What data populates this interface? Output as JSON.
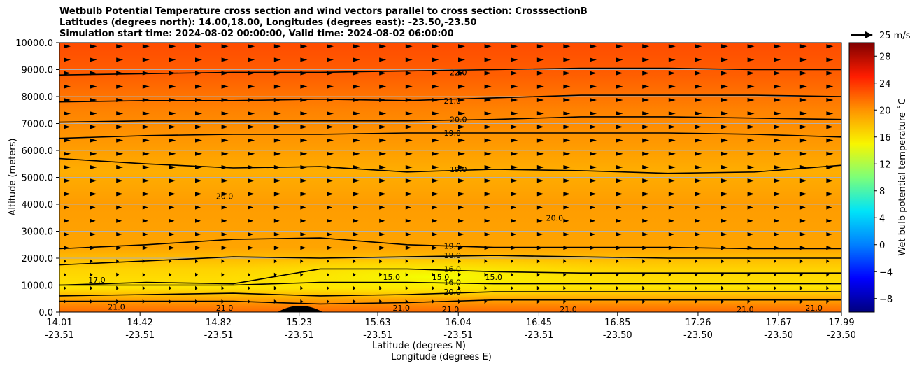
{
  "title": {
    "line1": "Wetbulb Potential Temperature cross section and wind vectors parallel to cross section: CrosssectionB",
    "line2": "Latitudes (degrees north): 14.00,18.00, Longitudes (degrees east): -23.50,-23.50",
    "line3": "Simulation start time: 2024-08-02 00:00:00, Valid time: 2024-08-02 06:00:00"
  },
  "quiver_key": "25 m/s",
  "colors": {
    "accent_black": "#000000",
    "grid": "#b0b0b0"
  },
  "chart_data": {
    "type": "heatmap",
    "ylabel": "Altitude (meters)",
    "xlabel_lat": "Latitude (degrees N)",
    "xlabel_lon": "Longitude (degrees E)",
    "ylim": [
      0,
      10000
    ],
    "y_ticks": [
      "0.0",
      "1000.0",
      "2000.0",
      "3000.0",
      "4000.0",
      "5000.0",
      "6000.0",
      "7000.0",
      "8000.0",
      "9000.0",
      "10000.0"
    ],
    "x_ticks": [
      {
        "lat": "14.01",
        "lon": "-23.51"
      },
      {
        "lat": "14.42",
        "lon": "-23.51"
      },
      {
        "lat": "14.82",
        "lon": "-23.51"
      },
      {
        "lat": "15.23",
        "lon": "-23.51"
      },
      {
        "lat": "15.63",
        "lon": "-23.51"
      },
      {
        "lat": "16.04",
        "lon": "-23.51"
      },
      {
        "lat": "16.45",
        "lon": "-23.51"
      },
      {
        "lat": "16.85",
        "lon": "-23.50"
      },
      {
        "lat": "17.26",
        "lon": "-23.50"
      },
      {
        "lat": "17.67",
        "lon": "-23.50"
      },
      {
        "lat": "17.99",
        "lon": "-23.50"
      }
    ],
    "x_range": [
      14.01,
      17.99
    ],
    "colorbar": {
      "label": "Wet bulb potential temperature ˚C",
      "range": [
        -10,
        30
      ],
      "ticks": [
        "−8",
        "−4",
        "0",
        "4",
        "8",
        "12",
        "16",
        "20",
        "24",
        "28"
      ],
      "tick_values": [
        -8,
        -4,
        0,
        4,
        8,
        12,
        16,
        20,
        24,
        28
      ]
    },
    "grid": "horizontal",
    "contours": [
      {
        "level": 22,
        "heights": [
          8800,
          8850,
          8900,
          8900,
          8950,
          9000,
          9050,
          9050,
          9000,
          9000
        ]
      },
      {
        "level": 21,
        "heights": [
          7800,
          7850,
          7850,
          7900,
          7850,
          7950,
          8050,
          8050,
          8050,
          8000
        ]
      },
      {
        "level": 20,
        "heights": [
          7050,
          7100,
          7100,
          7100,
          7100,
          7150,
          7250,
          7250,
          7200,
          7150
        ]
      },
      {
        "level": 19,
        "heights": [
          6450,
          6550,
          6600,
          6600,
          6650,
          6650,
          6650,
          6650,
          6600,
          6500
        ]
      },
      {
        "level": 19,
        "heights": [
          5700,
          5500,
          5350,
          5400,
          5200,
          5300,
          5250,
          5150,
          5200,
          5450
        ]
      },
      {
        "level": 19,
        "heights": [
          2350,
          2500,
          2700,
          2750,
          2500,
          2400,
          2400,
          2400,
          2350,
          2350
        ]
      },
      {
        "level": 18,
        "heights": [
          1750,
          1900,
          2050,
          2000,
          2050,
          2100,
          2050,
          2000,
          2000,
          2000
        ]
      },
      {
        "level": 16,
        "heights": [
          1000,
          1100,
          1050,
          1600,
          1600,
          1500,
          1450,
          1450,
          1450,
          1450
        ]
      },
      {
        "level": 16,
        "heights": [
          1000,
          1000,
          1000,
          1100,
          1100,
          1050,
          1050,
          1050,
          1050,
          1050
        ]
      },
      {
        "level": 20,
        "heights": [
          600,
          650,
          700,
          600,
          650,
          750,
          750,
          750,
          750,
          750
        ]
      },
      {
        "level": 21,
        "heights": [
          400,
          400,
          400,
          300,
          350,
          450,
          450,
          450,
          450,
          450
        ]
      }
    ],
    "contour_labels": [
      {
        "text": "22.0",
        "lat": 16.04,
        "alt": 8900
      },
      {
        "text": "21.0",
        "lat": 16.01,
        "alt": 7850
      },
      {
        "text": "20.0",
        "lat": 16.04,
        "alt": 7150
      },
      {
        "text": "19.0",
        "lat": 16.01,
        "alt": 6650
      },
      {
        "text": "19.0",
        "lat": 16.04,
        "alt": 5300
      },
      {
        "text": "20.0",
        "lat": 14.85,
        "alt": 4300
      },
      {
        "text": "20.0",
        "lat": 16.53,
        "alt": 3500
      },
      {
        "text": "19.0",
        "lat": 16.01,
        "alt": 2450
      },
      {
        "text": "18.0",
        "lat": 16.01,
        "alt": 2100
      },
      {
        "text": "16.0",
        "lat": 16.01,
        "alt": 1600
      },
      {
        "text": "16.0",
        "lat": 16.01,
        "alt": 1100
      },
      {
        "text": "20.0",
        "lat": 16.01,
        "alt": 750
      },
      {
        "text": "15.0",
        "lat": 15.7,
        "alt": 1300
      },
      {
        "text": "15.0",
        "lat": 15.95,
        "alt": 1300
      },
      {
        "text": "15.0",
        "lat": 16.22,
        "alt": 1300
      },
      {
        "text": "17.0",
        "lat": 14.2,
        "alt": 1200
      },
      {
        "text": "21.0",
        "lat": 14.3,
        "alt": 200
      },
      {
        "text": "21.0",
        "lat": 14.85,
        "alt": 150
      },
      {
        "text": "21.0",
        "lat": 15.75,
        "alt": 150
      },
      {
        "text": "21.0",
        "lat": 16.0,
        "alt": 100
      },
      {
        "text": "21.0",
        "lat": 16.6,
        "alt": 100
      },
      {
        "text": "21.0",
        "lat": 17.5,
        "alt": 100
      },
      {
        "text": "21.0",
        "lat": 17.85,
        "alt": 150
      }
    ]
  }
}
